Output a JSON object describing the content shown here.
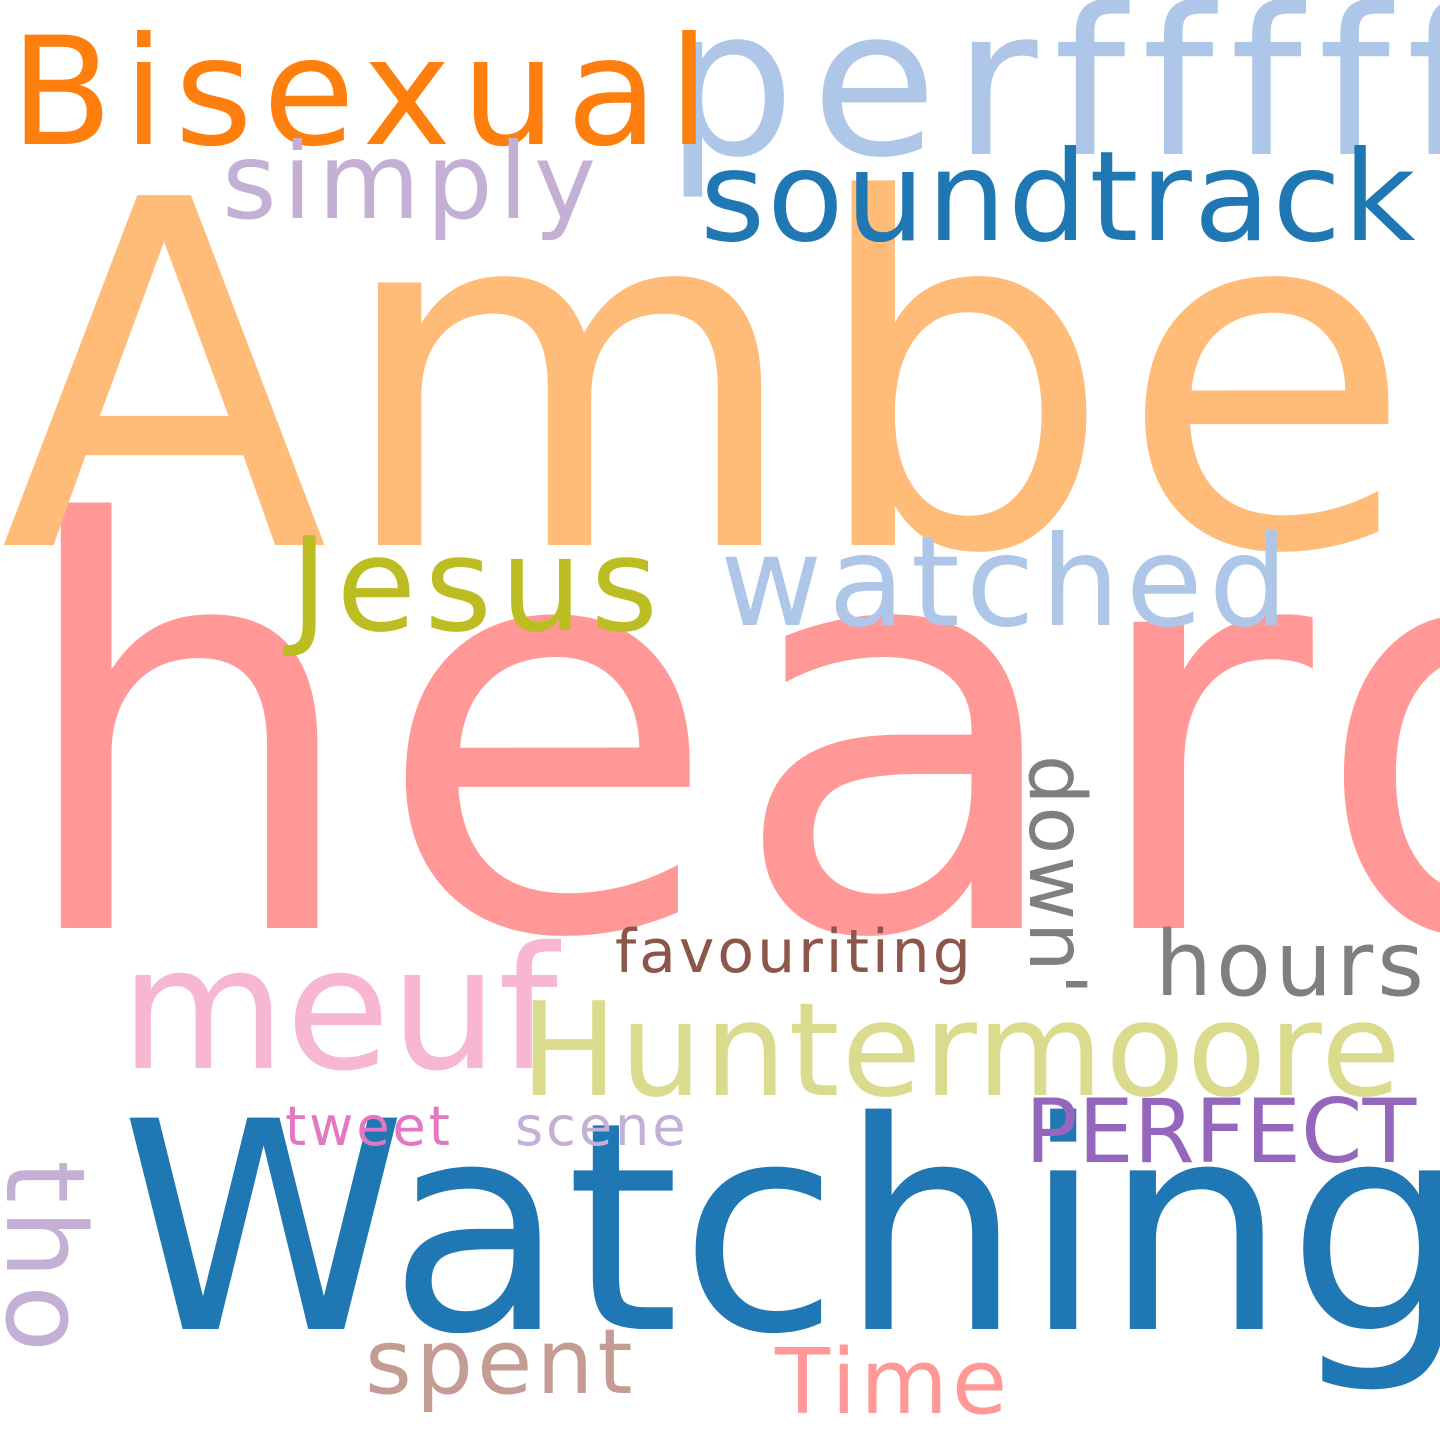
{
  "words": {
    "heard": {
      "text": "heard",
      "color": "#ff9896"
    },
    "amber": {
      "text": "Amber",
      "color": "#ffbb78"
    },
    "watching": {
      "text": "Watching",
      "color": "#1f77b4"
    },
    "perfffff": {
      "text": "perfffff",
      "color": "#aec7e8"
    },
    "bisexual": {
      "text": "Bisexual",
      "color": "#ff7f0e"
    },
    "soundtrack": {
      "text": "soundtrack",
      "color": "#1f77b4"
    },
    "simply": {
      "text": "simply",
      "color": "#c5b0d5"
    },
    "jesus": {
      "text": "Jesus",
      "color": "#bcbd22"
    },
    "watched": {
      "text": "watched",
      "color": "#aec7e8"
    },
    "meuf": {
      "text": "meuf",
      "color": "#f7b6d2"
    },
    "huntermoore": {
      "text": "Huntermoore",
      "color": "#dbdb8d"
    },
    "favouriting": {
      "text": "favouriting",
      "color": "#8c564b"
    },
    "down": {
      "text": "down'",
      "color": "#7f7f7f"
    },
    "hours": {
      "text": "hours",
      "color": "#7f7f7f"
    },
    "perfect": {
      "text": "PERFECT",
      "color": "#9467bd"
    },
    "tweet": {
      "text": "tweet",
      "color": "#e377c2"
    },
    "scene": {
      "text": "scene",
      "color": "#c5b0d5"
    },
    "tho": {
      "text": "tho",
      "color": "#c5b0d5"
    },
    "spent": {
      "text": "spent",
      "color": "#c49c94"
    },
    "time": {
      "text": "Time",
      "color": "#ff9896"
    }
  }
}
